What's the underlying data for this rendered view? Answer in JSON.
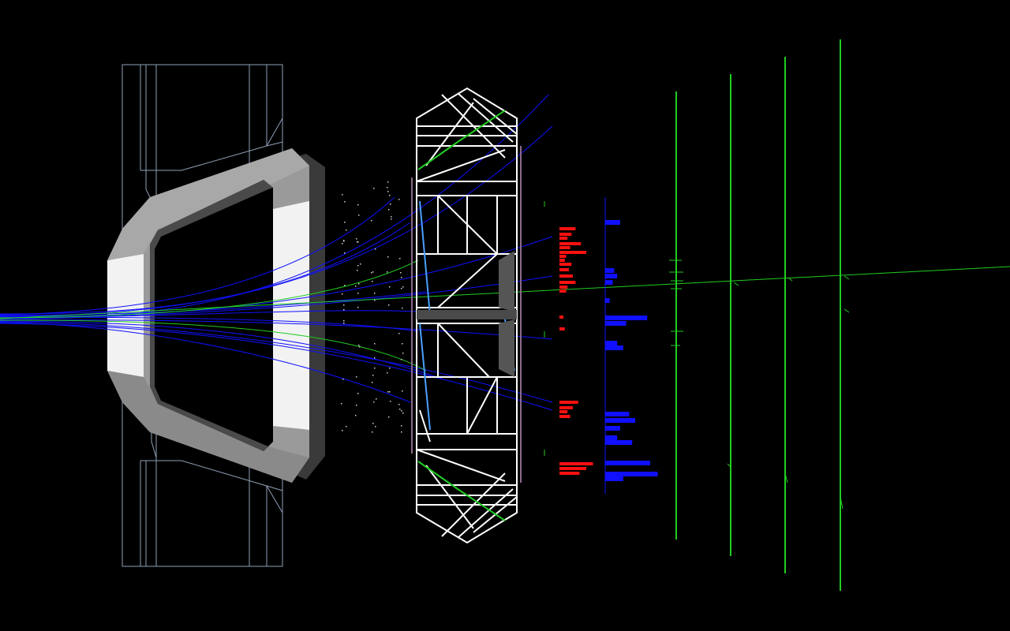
{
  "scene": {
    "title": "",
    "colors": {
      "background": "#000000",
      "outline": "#ffffff",
      "magnet_frame": "#e8e8e8",
      "magnet_shade": "#9a9a9a",
      "magnet_dark": "#3a3a3a",
      "chamber_lines": "#8fa0b8",
      "charged_tracks": "#1010ff",
      "neutral_tracks": "#22cc22",
      "ecal_hits": "#ff1111",
      "hcal_hits": "#1010ff",
      "muon_stations": "#22cc22"
    },
    "components": [
      "vertex-chamber",
      "dipole-magnet",
      "rich-detector",
      "ecal",
      "hcal",
      "muon-stations"
    ],
    "ecal_energies": [
      12,
      9,
      6,
      16,
      8,
      20,
      5,
      4,
      9,
      7,
      10,
      12,
      6,
      5,
      3,
      4,
      14,
      10,
      6,
      8,
      25,
      20,
      15
    ],
    "hcal_energies": [
      10,
      6,
      8,
      5,
      3,
      28,
      14,
      8,
      12,
      16,
      20,
      10,
      8,
      18,
      30,
      35,
      12
    ],
    "muon_station_count": 4
  }
}
